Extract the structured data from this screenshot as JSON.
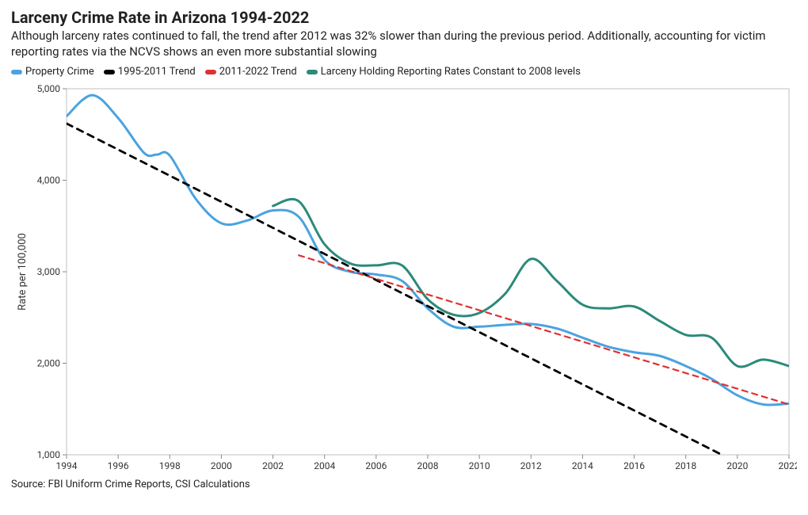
{
  "title": "Larceny Crime Rate in Arizona 1994-2022",
  "subtitle": "Although larceny rates continued to fall, the trend after 2012 was 32% slower than during the previous period. Additionally, accounting for victim reporting rates via the NCVS shows an even more substantial slowing",
  "source": "Source: FBI Uniform Crime Reports, CSI Calculations",
  "chart": {
    "type": "line",
    "background_color": "#ffffff",
    "plot_border_color": "#c0c0c0",
    "x": {
      "min": 1994,
      "max": 2022,
      "ticks": [
        1994,
        1996,
        1998,
        2000,
        2002,
        2004,
        2006,
        2008,
        2010,
        2012,
        2014,
        2016,
        2018,
        2020,
        2022
      ],
      "tick_fontsize": 12
    },
    "y": {
      "min": 1000,
      "max": 5000,
      "ticks": [
        1000,
        2000,
        3000,
        4000,
        5000
      ],
      "label": "Rate per 100,000",
      "tick_fontsize": 12,
      "label_fontsize": 13
    },
    "legend": {
      "items": [
        {
          "key": "property",
          "label": "Property Crime",
          "color": "#4aa3df"
        },
        {
          "key": "trend1",
          "label": "1995-2011 Trend",
          "color": "#000000"
        },
        {
          "key": "trend2",
          "label": "2011-2022 Trend",
          "color": "#e03131"
        },
        {
          "key": "larceny_adj",
          "label": "Larceny Holding Reporting Rates Constant to 2008 levels",
          "color": "#2b8a7a"
        }
      ]
    },
    "series": {
      "property": {
        "color": "#4aa3df",
        "line_width": 3,
        "dash": "none",
        "points": [
          [
            1994,
            4700
          ],
          [
            1995,
            4930
          ],
          [
            1996,
            4680
          ],
          [
            1997,
            4300
          ],
          [
            1997.5,
            4280
          ],
          [
            1998,
            4270
          ],
          [
            1999,
            3800
          ],
          [
            2000,
            3530
          ],
          [
            2001,
            3560
          ],
          [
            2002,
            3670
          ],
          [
            2003,
            3600
          ],
          [
            2004,
            3130
          ],
          [
            2005,
            3000
          ],
          [
            2006,
            2970
          ],
          [
            2007,
            2900
          ],
          [
            2008,
            2600
          ],
          [
            2009,
            2400
          ],
          [
            2010,
            2400
          ],
          [
            2011,
            2420
          ],
          [
            2012,
            2430
          ],
          [
            2013,
            2380
          ],
          [
            2014,
            2280
          ],
          [
            2015,
            2180
          ],
          [
            2016,
            2120
          ],
          [
            2017,
            2080
          ],
          [
            2018,
            1970
          ],
          [
            2019,
            1830
          ],
          [
            2020,
            1650
          ],
          [
            2021,
            1550
          ],
          [
            2022,
            1560
          ]
        ]
      },
      "trend1": {
        "color": "#000000",
        "line_width": 2.8,
        "dash": "8,7",
        "points": [
          [
            1994,
            4620
          ],
          [
            2019.4,
            1000
          ]
        ]
      },
      "trend2": {
        "color": "#e03131",
        "line_width": 2.2,
        "dash": "7,6",
        "points": [
          [
            2003,
            3180
          ],
          [
            2022,
            1550
          ]
        ]
      },
      "larceny_adj": {
        "color": "#2b8a7a",
        "line_width": 3,
        "dash": "none",
        "points": [
          [
            2002,
            3720
          ],
          [
            2003,
            3770
          ],
          [
            2004,
            3300
          ],
          [
            2005,
            3090
          ],
          [
            2006,
            3070
          ],
          [
            2007,
            3070
          ],
          [
            2008,
            2700
          ],
          [
            2009,
            2530
          ],
          [
            2010,
            2550
          ],
          [
            2011,
            2760
          ],
          [
            2012,
            3140
          ],
          [
            2013,
            2900
          ],
          [
            2014,
            2640
          ],
          [
            2015,
            2600
          ],
          [
            2016,
            2620
          ],
          [
            2017,
            2460
          ],
          [
            2018,
            2310
          ],
          [
            2019,
            2280
          ],
          [
            2020,
            1970
          ],
          [
            2021,
            2040
          ],
          [
            2022,
            1970
          ]
        ]
      }
    }
  }
}
